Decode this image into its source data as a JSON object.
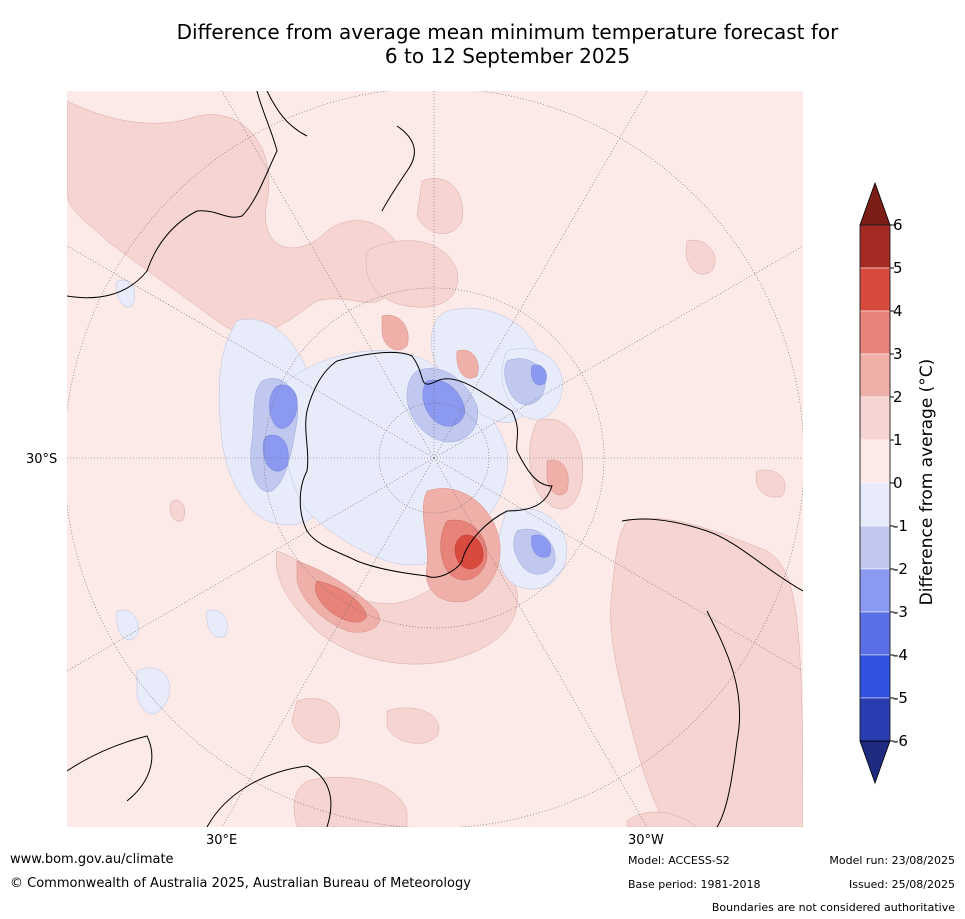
{
  "title_line1": "Difference from average mean minimum temperature forecast for",
  "title_line2": "6 to 12 September 2025",
  "map": {
    "projection": "south polar stereographic",
    "lat_labels": [
      "30°S"
    ],
    "lon_labels": [
      "30°E",
      "30°W"
    ],
    "background_anomaly_color": "#fbeae8"
  },
  "colorbar": {
    "label": "Difference from average (°C)",
    "ticks": [
      "6",
      "5",
      "4",
      "3",
      "2",
      "1",
      "0",
      "-1",
      "-2",
      "-3",
      "-4",
      "-5",
      "-6"
    ],
    "colors": [
      "#7a1e17",
      "#a52a23",
      "#d94a3e",
      "#e8837a",
      "#efb0aa",
      "#f5d4d1",
      "#fbeae8",
      "#e8ecfa",
      "#c0c8f0",
      "#8b9af0",
      "#5a70e6",
      "#3152e0",
      "#2a3db0",
      "#1f2b80"
    ]
  },
  "footer": {
    "website": "www.bom.gov.au/climate",
    "copyright": "© Commonwealth of Australia 2025, Australian Bureau of Meteorology",
    "model": "Model: ACCESS-S2",
    "base_period": "Base period: 1981-2018",
    "model_run": "Model run: 23/08/2025",
    "issued": "Issued: 25/08/2025",
    "disclaimer": "Boundaries are not considered authoritative"
  }
}
